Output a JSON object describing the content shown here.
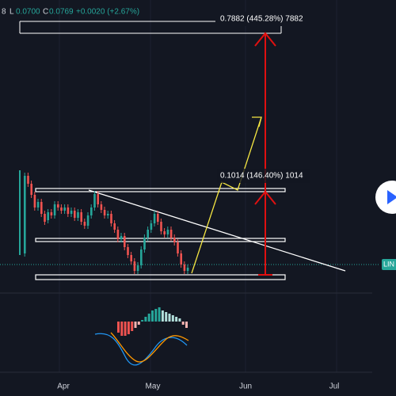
{
  "legend": {
    "symbol_fragment": "8",
    "low_label": "L",
    "low": "0.0700",
    "close_label": "C",
    "close": "0.0769",
    "change": "+0.0020 (+2.67%)"
  },
  "annotations": [
    "0.7882 (445.28%) 7882",
    "0.1014 (146.40%) 1014"
  ],
  "time_axis": [
    "Apr",
    "May",
    "Jun",
    "Jul"
  ],
  "price_tag": "LIN"
}
